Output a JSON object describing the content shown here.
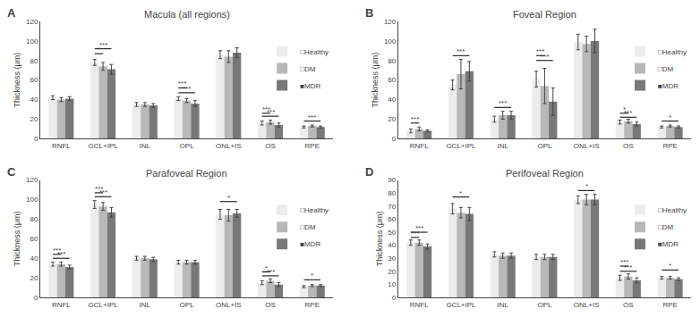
{
  "chart_data": [
    {
      "type": "bar",
      "panel_label": "A",
      "title": "Macula (all regions)",
      "y_label": "Thickness (μm)",
      "categories": [
        "RNFL",
        "GCL+IPL",
        "INL",
        "OPL",
        "ONL+IS",
        "OS",
        "RPE"
      ],
      "series": [
        {
          "name": "□Healthy",
          "color": "#ececec",
          "values": [
            42,
            78,
            35,
            41,
            86,
            16,
            12
          ],
          "errors": [
            2,
            3,
            2,
            2,
            4,
            2,
            1
          ]
        },
        {
          "name": "□DM",
          "color": "#b8b8b8",
          "values": [
            40,
            74,
            35,
            39,
            84,
            17,
            13
          ],
          "errors": [
            2,
            4,
            2,
            2,
            6,
            2,
            1
          ]
        },
        {
          "name": "■MDR",
          "color": "#787878",
          "values": [
            41,
            71,
            34,
            36,
            88,
            14,
            12
          ],
          "errors": [
            2,
            5,
            2,
            3,
            5,
            2,
            1
          ]
        }
      ],
      "ylim": [
        0,
        120
      ],
      "yticks": [
        0,
        20,
        40,
        60,
        80,
        100,
        120
      ],
      "grid": false,
      "legend": "right",
      "annotations": [
        {
          "category": "GCL+IPL",
          "between": [
            "□Healthy",
            "■MDR"
          ],
          "y": 92,
          "text": "***"
        },
        {
          "category": "GCL+IPL",
          "between": [
            "□Healthy",
            "□DM"
          ],
          "y": 87,
          "text": "*"
        },
        {
          "category": "OPL",
          "between": [
            "□Healthy",
            "□DM"
          ],
          "y": 52,
          "text": "***"
        },
        {
          "category": "OPL",
          "between": [
            "□Healthy",
            "■MDR"
          ],
          "y": 47,
          "text": "***"
        },
        {
          "category": "OS",
          "between": [
            "□Healthy",
            "□DM"
          ],
          "y": 26,
          "text": "***"
        },
        {
          "category": "OS",
          "between": [
            "□Healthy",
            "■MDR"
          ],
          "y": 23,
          "text": "***"
        },
        {
          "category": "RPE",
          "between": [
            "□Healthy",
            "■MDR"
          ],
          "y": 18,
          "text": "***"
        }
      ]
    },
    {
      "type": "bar",
      "panel_label": "B",
      "title": "Foveal Region",
      "y_label": "Thickness (μm)",
      "categories": [
        "RNFL",
        "GCL+IPL",
        "INL",
        "OPL",
        "ONL+IS",
        "OS",
        "RPE"
      ],
      "series": [
        {
          "name": "□Healthy",
          "color": "#ececec",
          "values": [
            8,
            55,
            20,
            61,
            99,
            17,
            12
          ],
          "errors": [
            2,
            5,
            3,
            8,
            8,
            2,
            1
          ]
        },
        {
          "name": "□DM",
          "color": "#b8b8b8",
          "values": [
            10,
            66,
            24,
            54,
            97,
            18,
            13
          ],
          "errors": [
            2,
            15,
            4,
            18,
            8,
            2,
            1
          ]
        },
        {
          "name": "■MDR",
          "color": "#787878",
          "values": [
            8,
            69,
            24,
            38,
            100,
            15,
            12
          ],
          "errors": [
            1,
            10,
            4,
            14,
            12,
            2,
            1
          ]
        }
      ],
      "ylim": [
        0,
        120
      ],
      "yticks": [
        0,
        20,
        40,
        60,
        80,
        100,
        120
      ],
      "grid": false,
      "legend": "right",
      "annotations": [
        {
          "category": "RNFL",
          "between": [
            "□Healthy",
            "□DM"
          ],
          "y": 16,
          "text": "***"
        },
        {
          "category": "GCL+IPL",
          "between": [
            "□Healthy",
            "■MDR"
          ],
          "y": 85,
          "text": "***"
        },
        {
          "category": "INL",
          "between": [
            "□Healthy",
            "■MDR"
          ],
          "y": 32,
          "text": "***"
        },
        {
          "category": "OPL",
          "between": [
            "□Healthy",
            "□DM"
          ],
          "y": 85,
          "text": "***"
        },
        {
          "category": "OPL",
          "between": [
            "□Healthy",
            "■MDR"
          ],
          "y": 80,
          "text": "***"
        },
        {
          "category": "OS",
          "between": [
            "□Healthy",
            "□DM"
          ],
          "y": 26,
          "text": "*"
        },
        {
          "category": "OS",
          "between": [
            "□Healthy",
            "■MDR"
          ],
          "y": 22,
          "text": "***"
        },
        {
          "category": "RPE",
          "between": [
            "□Healthy",
            "■MDR"
          ],
          "y": 18,
          "text": "*"
        }
      ]
    },
    {
      "type": "bar",
      "panel_label": "C",
      "title": "Parafoveal Region",
      "y_label": "Thickness (μm)",
      "categories": [
        "RNFL",
        "GCL+IPL",
        "INL",
        "OPL",
        "ONL+IS",
        "OS",
        "RPE"
      ],
      "series": [
        {
          "name": "□Healthy",
          "color": "#ececec",
          "values": [
            34,
            95,
            40,
            36,
            85,
            15,
            11
          ],
          "errors": [
            2,
            4,
            2,
            2,
            5,
            2,
            1
          ]
        },
        {
          "name": "□DM",
          "color": "#b8b8b8",
          "values": [
            34,
            93,
            40,
            36,
            84,
            17,
            12
          ],
          "errors": [
            2,
            4,
            2,
            2,
            6,
            2,
            1
          ]
        },
        {
          "name": "■MDR",
          "color": "#787878",
          "values": [
            31,
            87,
            39,
            36,
            86,
            13,
            12
          ],
          "errors": [
            2,
            5,
            2,
            2,
            4,
            2,
            1
          ]
        }
      ],
      "ylim": [
        0,
        120
      ],
      "yticks": [
        0,
        20,
        40,
        60,
        80,
        100,
        120
      ],
      "grid": false,
      "legend": "right",
      "annotations": [
        {
          "category": "RNFL",
          "between": [
            "□Healthy",
            "□DM"
          ],
          "y": 44,
          "text": "***"
        },
        {
          "category": "RNFL",
          "between": [
            "□Healthy",
            "■MDR"
          ],
          "y": 40,
          "text": "***"
        },
        {
          "category": "GCL+IPL",
          "between": [
            "□Healthy",
            "□DM"
          ],
          "y": 107,
          "text": "***"
        },
        {
          "category": "GCL+IPL",
          "between": [
            "□Healthy",
            "■MDR"
          ],
          "y": 103,
          "text": "***"
        },
        {
          "category": "ONL+IS",
          "between": [
            "□Healthy",
            "■MDR"
          ],
          "y": 98,
          "text": "*"
        },
        {
          "category": "OS",
          "between": [
            "□Healthy",
            "□DM"
          ],
          "y": 26,
          "text": "*"
        },
        {
          "category": "OS",
          "between": [
            "□Healthy",
            "■MDR"
          ],
          "y": 22,
          "text": "***"
        },
        {
          "category": "RPE",
          "between": [
            "□Healthy",
            "■MDR"
          ],
          "y": 18,
          "text": "*"
        }
      ]
    },
    {
      "type": "bar",
      "panel_label": "D",
      "title": "Perifoveal Region",
      "y_label": "Thickness (μm)",
      "categories": [
        "RNFL",
        "GCL+IPL",
        "INL",
        "OPL",
        "ONL+IS",
        "OS",
        "RPE"
      ],
      "series": [
        {
          "name": "□Healthy",
          "color": "#ececec",
          "values": [
            42,
            68,
            33,
            31,
            75,
            15,
            15
          ],
          "errors": [
            2,
            4,
            2,
            2,
            3,
            2,
            1
          ]
        },
        {
          "name": "□DM",
          "color": "#b8b8b8",
          "values": [
            42,
            65,
            32,
            31,
            75,
            16,
            15
          ],
          "errors": [
            2,
            4,
            2,
            2,
            4,
            2,
            1
          ]
        },
        {
          "name": "■MDR",
          "color": "#787878",
          "values": [
            39,
            64,
            32,
            31,
            75,
            13,
            14
          ],
          "errors": [
            2,
            5,
            2,
            2,
            4,
            2,
            1
          ]
        }
      ],
      "ylim": [
        0,
        90
      ],
      "yticks": [
        0,
        10,
        20,
        30,
        40,
        50,
        60,
        70,
        80,
        90
      ],
      "grid": false,
      "legend": "right",
      "annotations": [
        {
          "category": "RNFL",
          "between": [
            "□Healthy",
            "■MDR"
          ],
          "y": 50,
          "text": "***"
        },
        {
          "category": "RNFL",
          "between": [
            "□Healthy",
            "□DM"
          ],
          "y": 46,
          "text": "***"
        },
        {
          "category": "GCL+IPL",
          "between": [
            "□Healthy",
            "■MDR"
          ],
          "y": 77,
          "text": "*"
        },
        {
          "category": "ONL+IS",
          "between": [
            "□Healthy",
            "■MDR"
          ],
          "y": 82,
          "text": "*"
        },
        {
          "category": "OS",
          "between": [
            "□Healthy",
            "□DM"
          ],
          "y": 24,
          "text": "***"
        },
        {
          "category": "OS",
          "between": [
            "□Healthy",
            "■MDR"
          ],
          "y": 20,
          "text": "***"
        },
        {
          "category": "RPE",
          "between": [
            "□Healthy",
            "■MDR"
          ],
          "y": 21,
          "text": "*"
        }
      ]
    }
  ]
}
